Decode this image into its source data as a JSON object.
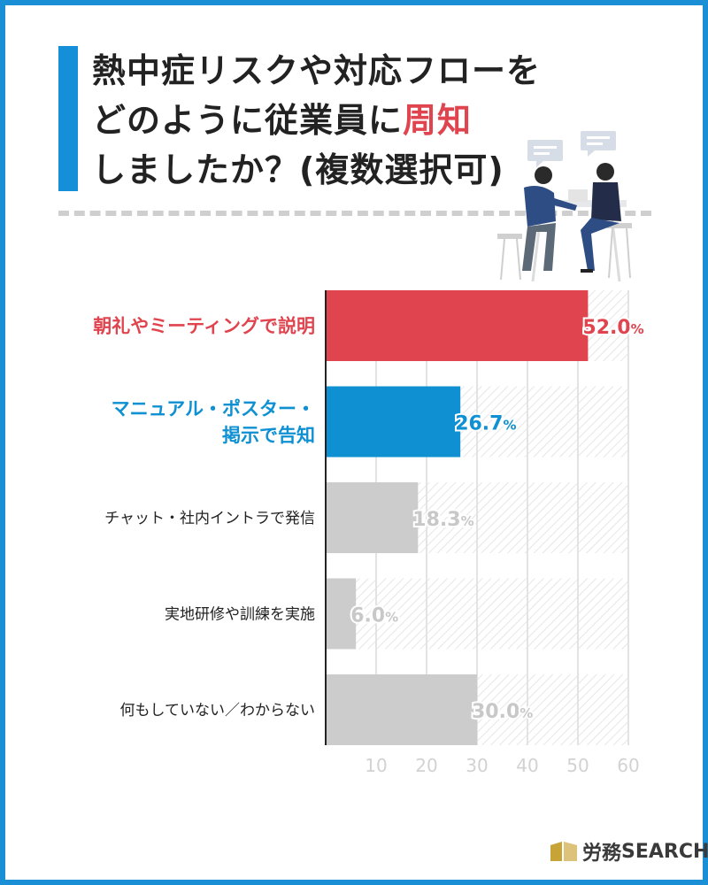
{
  "title": {
    "line1": "熱中症リスクや対応フローを",
    "line2_prefix": "どのように従業員に",
    "line2_highlight": "周知",
    "line3": "しましたか？(複数選択可)"
  },
  "colors": {
    "frame": "#1b8fd6",
    "accent_red": "#e0454f",
    "accent_blue": "#0e90d2",
    "gray_bar": "#cccccc",
    "value_gray": "#c8c8c8",
    "label_dark": "#222222"
  },
  "chart_data": {
    "type": "bar",
    "orientation": "horizontal",
    "categories": [
      [
        "朝礼やミーティングで説明"
      ],
      [
        "マニュアル・ポスター・",
        "掲示で告知"
      ],
      [
        "チャット・社内イントラで発信"
      ],
      [
        "実地研修や訓練を実施"
      ],
      [
        "何もしていない／わからない"
      ]
    ],
    "values": [
      52.0,
      26.7,
      18.3,
      6.0,
      30.0
    ],
    "value_labels": [
      {
        "main": "52.0",
        "unit": "%"
      },
      {
        "main": "26.7",
        "unit": "%"
      },
      {
        "main": "18.3",
        "unit": "%"
      },
      {
        "main": "6.0",
        "unit": "%"
      },
      {
        "main": "30.0",
        "unit": "%"
      }
    ],
    "highlight": [
      "red",
      "blue",
      "none",
      "none",
      "none"
    ],
    "xlim": [
      0,
      60
    ],
    "xticks": [
      10,
      20,
      30,
      40,
      50,
      60
    ],
    "grid": true
  },
  "logo": {
    "text_jp": "労務",
    "text_en": "SEARCH"
  },
  "illustration": "two-people-at-table-with-speech-bubbles"
}
